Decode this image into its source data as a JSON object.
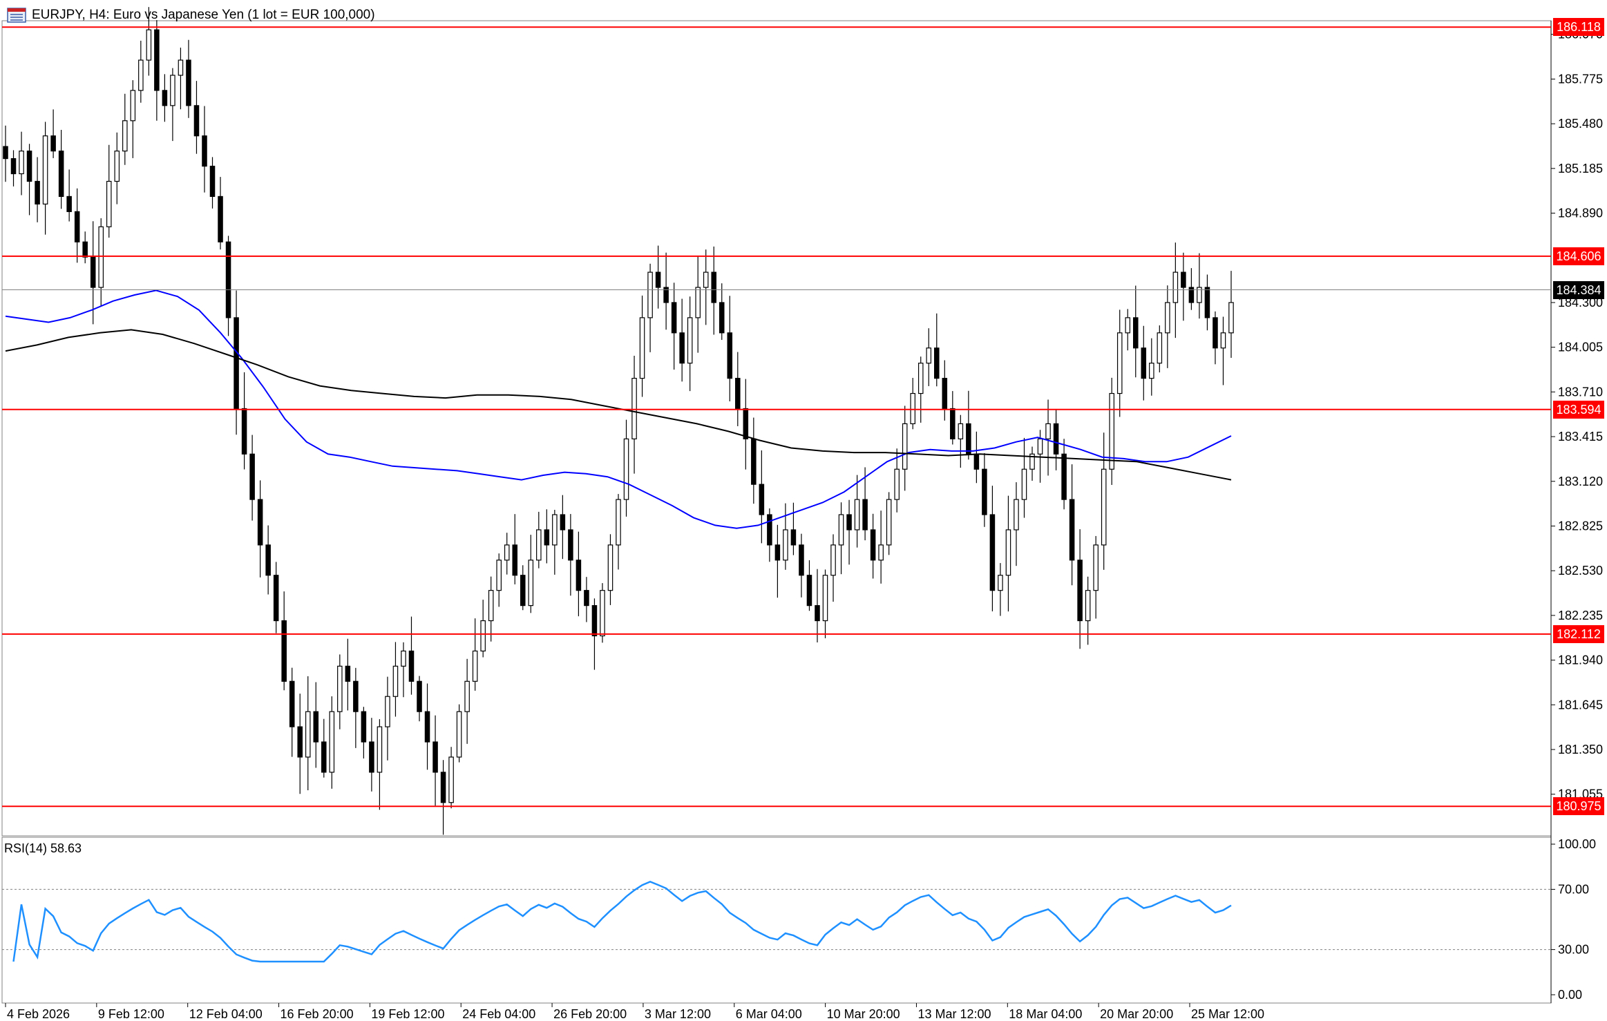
{
  "header": {
    "symbol_label": "EURJPY, H4:  Euro vs Japanese Yen (1 lot = EUR 100,000)",
    "icon": "chart-window-icon"
  },
  "price_axis": {
    "ticks": [
      "186.070",
      "185.775",
      "185.480",
      "185.185",
      "184.890",
      "184.300",
      "184.005",
      "183.710",
      "183.415",
      "183.120",
      "182.825",
      "182.530",
      "182.235",
      "181.940",
      "181.645",
      "181.350",
      "181.055"
    ]
  },
  "levels": [
    {
      "price": 186.118,
      "label": "186.118",
      "color": "#ff0000"
    },
    {
      "price": 184.606,
      "label": "184.606",
      "color": "#ff0000"
    },
    {
      "price": 183.594,
      "label": "183.594",
      "color": "#ff0000"
    },
    {
      "price": 182.112,
      "label": "182.112",
      "color": "#ff0000"
    },
    {
      "price": 180.975,
      "label": "180.975",
      "color": "#ff0000"
    }
  ],
  "current_price": {
    "price": 184.384,
    "label": "184.384",
    "color": "#000000"
  },
  "rsi": {
    "label": "RSI(14) 58.63",
    "ticks": [
      "100.00",
      "70.00",
      "30.00",
      "0.00"
    ],
    "color": "#1e90ff"
  },
  "time_axis": {
    "labels": [
      "4 Feb 2026",
      "9 Feb 12:00",
      "12 Feb 04:00",
      "16 Feb 20:00",
      "19 Feb 12:00",
      "24 Feb 04:00",
      "26 Feb 20:00",
      "3 Mar 12:00",
      "6 Mar 04:00",
      "10 Mar 20:00",
      "13 Mar 12:00",
      "18 Mar 04:00",
      "20 Mar 20:00",
      "25 Mar 12:00"
    ]
  },
  "chart_data": {
    "type": "candlestick",
    "symbol": "EURJPY",
    "timeframe": "H4",
    "ylim": [
      180.78,
      186.16
    ],
    "close_path": [
      185.25,
      185.15,
      185.3,
      185.1,
      184.95,
      185.4,
      185.3,
      185.0,
      184.9,
      184.7,
      184.6,
      184.4,
      184.8,
      185.1,
      185.3,
      185.5,
      185.7,
      185.9,
      186.1,
      185.7,
      185.6,
      185.8,
      185.9,
      185.6,
      185.4,
      185.2,
      185.0,
      184.7,
      184.2,
      183.6,
      183.3,
      183.0,
      182.7,
      182.5,
      182.2,
      181.8,
      181.5,
      181.3,
      181.6,
      181.4,
      181.2,
      181.6,
      181.9,
      181.8,
      181.6,
      181.4,
      181.2,
      181.5,
      181.7,
      181.9,
      182.0,
      181.8,
      181.6,
      181.4,
      181.2,
      181.0,
      181.3,
      181.6,
      181.8,
      182.0,
      182.2,
      182.4,
      182.6,
      182.7,
      182.5,
      182.3,
      182.6,
      182.8,
      182.7,
      182.9,
      182.8,
      182.6,
      182.4,
      182.3,
      182.1,
      182.4,
      182.7,
      183.0,
      183.4,
      183.8,
      184.2,
      184.5,
      184.4,
      184.3,
      184.1,
      183.9,
      184.2,
      184.4,
      184.5,
      184.3,
      184.1,
      183.8,
      183.6,
      183.4,
      183.1,
      182.9,
      182.7,
      182.6,
      182.8,
      182.7,
      182.5,
      182.3,
      182.2,
      182.5,
      182.7,
      182.9,
      182.8,
      183.0,
      182.8,
      182.6,
      182.7,
      183.0,
      183.2,
      183.5,
      183.7,
      183.9,
      184.0,
      183.8,
      183.6,
      183.4,
      183.5,
      183.3,
      183.2,
      182.9,
      182.4,
      182.5,
      182.8,
      183.0,
      183.2,
      183.3,
      183.4,
      183.5,
      183.3,
      183.0,
      182.6,
      182.2,
      182.4,
      182.7,
      183.2,
      183.7,
      184.1,
      184.2,
      184.0,
      183.8,
      183.9,
      184.1,
      184.3,
      184.5,
      184.4,
      184.3,
      184.4,
      184.2,
      184.0,
      184.1,
      184.3
    ],
    "moving_averages": [
      {
        "color": "#0000ff",
        "values": [
          184.21,
          184.19,
          184.17,
          184.2,
          184.25,
          184.31,
          184.35,
          184.38,
          184.34,
          184.25,
          184.1,
          183.93,
          183.74,
          183.53,
          183.38,
          183.3,
          183.28,
          183.25,
          183.22,
          183.21,
          183.2,
          183.19,
          183.17,
          183.15,
          183.13,
          183.16,
          183.18,
          183.17,
          183.15,
          183.1,
          183.03,
          182.96,
          182.88,
          182.83,
          182.81,
          182.83,
          182.88,
          182.93,
          182.98,
          183.05,
          183.15,
          183.25,
          183.31,
          183.33,
          183.32,
          183.32,
          183.34,
          183.38,
          183.41,
          183.37,
          183.33,
          183.28,
          183.27,
          183.25,
          183.25,
          183.28,
          183.35,
          183.42
        ]
      },
      {
        "color": "#000000",
        "values": [
          183.98,
          184.02,
          184.07,
          184.1,
          184.12,
          184.09,
          184.03,
          183.96,
          183.89,
          183.81,
          183.75,
          183.72,
          183.7,
          183.68,
          183.67,
          183.69,
          183.69,
          183.68,
          183.66,
          183.62,
          183.58,
          183.54,
          183.5,
          183.45,
          183.39,
          183.34,
          183.32,
          183.31,
          183.31,
          183.3,
          183.29,
          183.3,
          183.29,
          183.28,
          183.27,
          183.26,
          183.25,
          183.21,
          183.17,
          183.13
        ]
      }
    ]
  }
}
